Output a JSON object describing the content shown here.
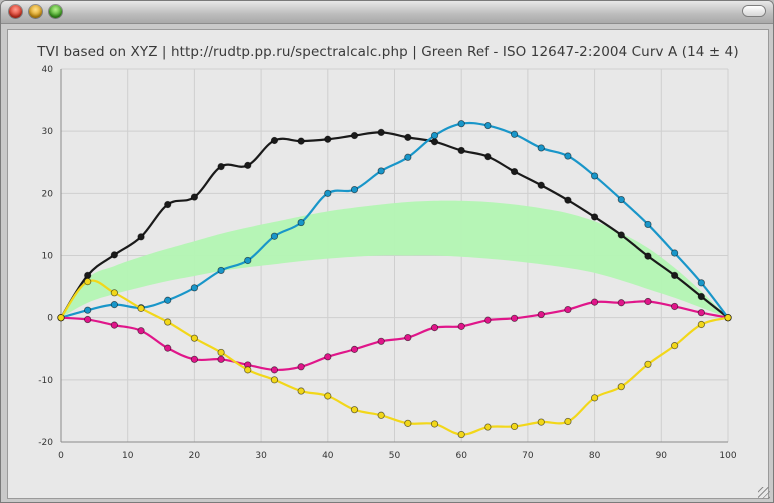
{
  "window": {
    "buttons": [
      "close",
      "minimize",
      "zoom"
    ],
    "toolbar_toggle": "pill"
  },
  "chart_data": {
    "type": "line",
    "title": "TVI based on XYZ | http://rudtp.pp.ru/spectralcalc.php | Green Ref - ISO 12647-2:2004 Curv A (14 ± 4)",
    "xlabel": "",
    "ylabel": "",
    "xlim": [
      0,
      100
    ],
    "ylim": [
      -20,
      40
    ],
    "x_ticks": [
      0,
      10,
      20,
      30,
      40,
      50,
      60,
      70,
      80,
      90,
      100
    ],
    "y_ticks": [
      -20,
      -10,
      0,
      10,
      20,
      30,
      40
    ],
    "grid": true,
    "legend": "none",
    "x": [
      0,
      4,
      8,
      12,
      16,
      20,
      24,
      28,
      32,
      36,
      40,
      44,
      48,
      52,
      56,
      60,
      64,
      68,
      72,
      76,
      80,
      84,
      88,
      92,
      96,
      100
    ],
    "band": {
      "color": "#b3f5b3",
      "lower": [
        0,
        2.4,
        3.8,
        4.9,
        5.9,
        6.7,
        7.5,
        8.1,
        8.6,
        9.1,
        9.5,
        9.8,
        10.0,
        10.0,
        10.0,
        9.8,
        9.5,
        9.1,
        8.6,
        8.0,
        7.2,
        6.0,
        4.6,
        3.2,
        1.6,
        0
      ],
      "upper": [
        0,
        6.3,
        8.3,
        9.8,
        11.1,
        12.3,
        13.5,
        14.5,
        15.4,
        16.3,
        17.1,
        17.7,
        18.2,
        18.6,
        18.8,
        18.8,
        18.6,
        18.2,
        17.6,
        16.8,
        15.5,
        13.6,
        11.2,
        8.0,
        4.2,
        0
      ]
    },
    "series": [
      {
        "color": "#1a1a1a",
        "values": [
          0,
          6.8,
          10.1,
          13.0,
          18.2,
          19.4,
          24.3,
          24.5,
          28.5,
          28.4,
          28.7,
          29.3,
          29.8,
          29.0,
          28.3,
          26.9,
          25.9,
          23.5,
          21.3,
          18.9,
          16.2,
          13.3,
          9.9,
          6.8,
          3.4,
          0
        ]
      },
      {
        "color": "#1996c9",
        "values": [
          0,
          1.2,
          2.1,
          1.6,
          2.8,
          4.8,
          7.6,
          9.2,
          13.1,
          15.3,
          20.0,
          20.6,
          23.6,
          25.8,
          29.3,
          31.2,
          30.9,
          29.5,
          27.3,
          26.0,
          22.8,
          19.0,
          15.0,
          10.4,
          5.6,
          0
        ]
      },
      {
        "color": "#e0168a",
        "values": [
          0,
          -0.3,
          -1.2,
          -2.1,
          -4.9,
          -6.7,
          -6.7,
          -7.6,
          -8.4,
          -7.9,
          -6.3,
          -5.1,
          -3.8,
          -3.2,
          -1.6,
          -1.4,
          -0.4,
          -0.1,
          0.5,
          1.3,
          2.5,
          2.4,
          2.6,
          1.8,
          0.8,
          0
        ]
      },
      {
        "color": "#f2d71a",
        "values": [
          0,
          5.8,
          4.0,
          1.5,
          -0.7,
          -3.3,
          -5.6,
          -8.4,
          -10.0,
          -11.8,
          -12.6,
          -14.8,
          -15.7,
          -17.0,
          -17.1,
          -18.8,
          -17.6,
          -17.5,
          -16.8,
          -16.7,
          -12.9,
          -11.1,
          -7.5,
          -4.5,
          -1.1,
          0
        ]
      }
    ]
  }
}
